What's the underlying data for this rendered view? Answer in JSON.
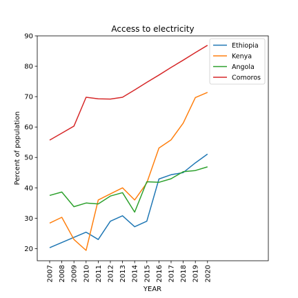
{
  "chart_data": {
    "type": "line",
    "title": "Access to electricity",
    "xlabel": "YEAR",
    "ylabel": "Percent of population",
    "x": [
      "2007",
      "2008",
      "2009",
      "2010",
      "2011",
      "2012",
      "2013",
      "2014",
      "2015",
      "2016",
      "2017",
      "2018",
      "2019",
      "2020"
    ],
    "ylim": [
      16,
      90
    ],
    "yticks": [
      20,
      30,
      40,
      50,
      60,
      70,
      80,
      90
    ],
    "grid": false,
    "legend_position": "top-right",
    "series": [
      {
        "name": "Ethiopia",
        "color": "#1f77b4",
        "values": [
          20.3,
          22.0,
          23.7,
          25.4,
          23.0,
          29.0,
          30.8,
          27.2,
          29.0,
          42.9,
          44.3,
          45.0,
          48.2,
          51.1
        ]
      },
      {
        "name": "Kenya",
        "color": "#ff7f0e",
        "values": [
          28.4,
          30.3,
          23.0,
          19.4,
          36.0,
          38.0,
          40.0,
          36.0,
          41.6,
          53.1,
          55.8,
          61.3,
          69.7,
          71.4
        ]
      },
      {
        "name": "Angola",
        "color": "#2ca02c",
        "values": [
          37.5,
          38.6,
          33.8,
          35.0,
          34.7,
          37.3,
          38.4,
          32.0,
          42.0,
          41.8,
          43.0,
          45.3,
          45.7,
          46.9
        ]
      },
      {
        "name": "Comoros",
        "color": "#d62728",
        "values": [
          55.7,
          58.0,
          60.3,
          69.8,
          69.3,
          69.2,
          69.8,
          72.2,
          74.7,
          77.1,
          79.6,
          82.0,
          84.5,
          86.9
        ]
      }
    ]
  }
}
